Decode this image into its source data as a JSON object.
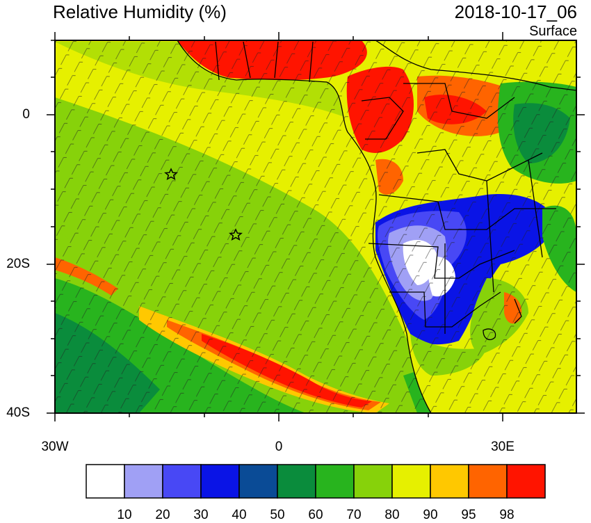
{
  "header": {
    "title": "Relative Humidity (%)",
    "datetime": "2018-10-17_06",
    "level": "Surface"
  },
  "axes": {
    "lat_ticks": [
      {
        "label": "0",
        "value": 0
      },
      {
        "label": "20S",
        "value": -20
      },
      {
        "label": "40S",
        "value": -40
      }
    ],
    "lon_ticks": [
      {
        "label": "30W",
        "value": -30
      },
      {
        "label": "0",
        "value": 0
      },
      {
        "label": "30E",
        "value": 30
      }
    ]
  },
  "colorbar": {
    "colors": [
      "#ffffff",
      "#a0a0f5",
      "#4848f5",
      "#0a14e6",
      "#0a4b96",
      "#0a8c3c",
      "#28b41e",
      "#87d20a",
      "#e6f000",
      "#ffc800",
      "#ff6400",
      "#ff1400"
    ],
    "labels": [
      "10",
      "20",
      "30",
      "40",
      "50",
      "60",
      "70",
      "80",
      "90",
      "95",
      "98"
    ]
  },
  "markers": {
    "icon": "star-icon",
    "stars": [
      {
        "lon": -14.5,
        "lat": -8
      },
      {
        "lon": -5.6,
        "lat": -16
      }
    ]
  }
}
